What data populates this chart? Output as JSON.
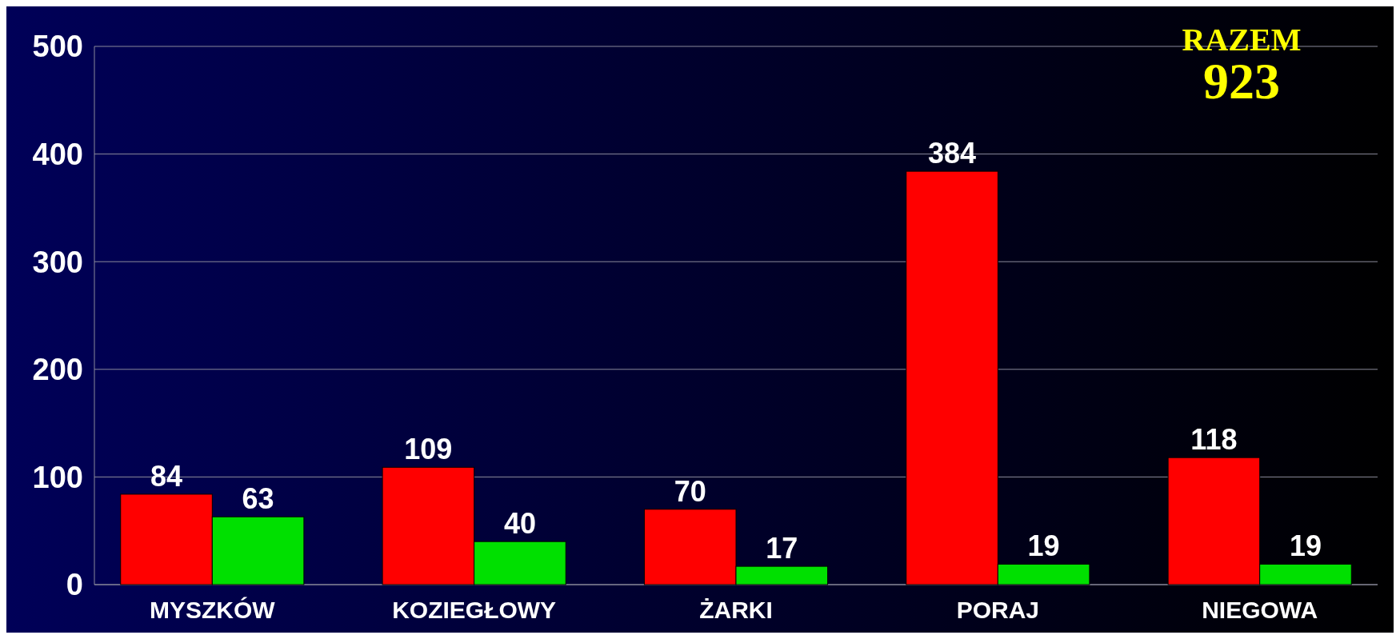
{
  "chart_data": {
    "type": "bar",
    "categories": [
      "MYSZKÓW",
      "KOZIEGŁOWY",
      "ŻARKI",
      "PORAJ",
      "NIEGOWA"
    ],
    "series": [
      {
        "color": "#ff0000",
        "values": [
          84,
          109,
          70,
          384,
          118
        ]
      },
      {
        "color": "#00e000",
        "values": [
          63,
          40,
          17,
          19,
          19
        ]
      }
    ],
    "ylim": [
      0,
      500
    ],
    "yticks": [
      0,
      100,
      200,
      300,
      400,
      500
    ],
    "grid": "y",
    "data_labels": true,
    "annotations": [
      "RAZEM",
      "923"
    ]
  }
}
